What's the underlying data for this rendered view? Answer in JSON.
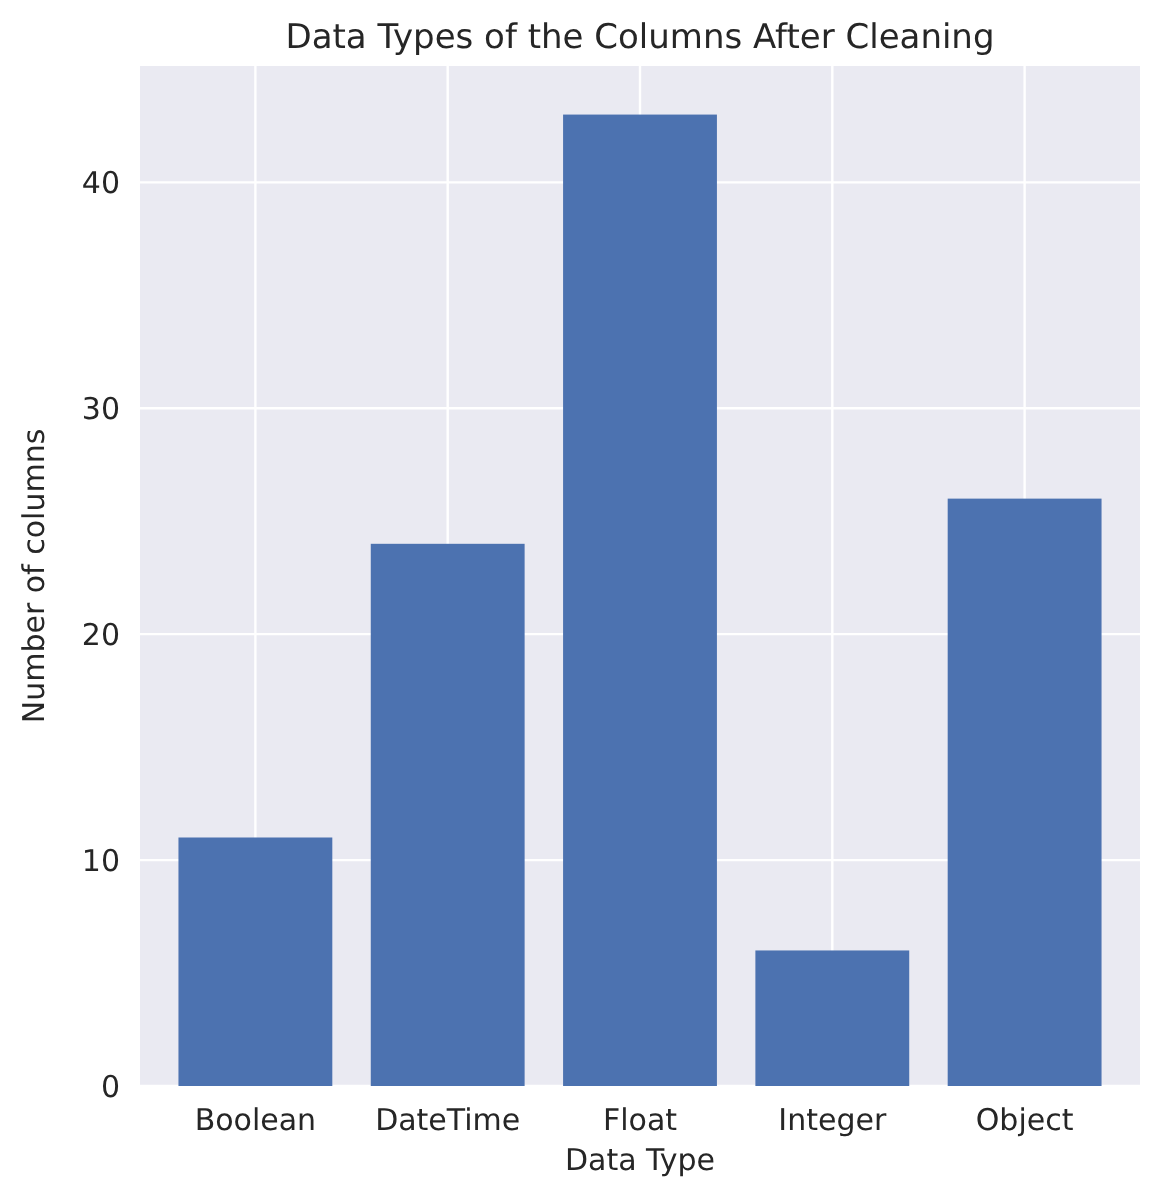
{
  "chart_data": {
    "type": "bar",
    "title": "Data Types of the Columns After Cleaning",
    "xlabel": "Data Type",
    "ylabel": "Number of columns",
    "categories": [
      "Boolean",
      "DateTime",
      "Float",
      "Integer",
      "Object"
    ],
    "values": [
      11,
      24,
      43,
      6,
      26
    ],
    "color": "#4c72b0",
    "ylim": [
      0,
      45.15
    ],
    "yticks": [
      0,
      10,
      20,
      30,
      40
    ],
    "grid": true
  }
}
